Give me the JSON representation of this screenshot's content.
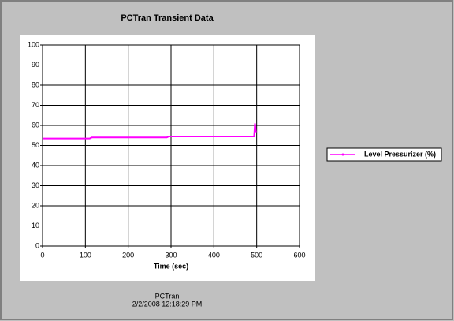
{
  "chart_data": {
    "type": "line",
    "title": "PCTran Transient Data",
    "x_label": "Time (sec)",
    "footer": [
      "PCTran",
      "2/2/2008 12:18:29 PM"
    ],
    "x": [
      0,
      110,
      115,
      290,
      295,
      494,
      496,
      498,
      500
    ],
    "series": [
      {
        "name": "Level Pressurizer (%)",
        "color": "#ff00ff",
        "values": [
          53.5,
          53.5,
          54,
          54,
          54.5,
          54.5,
          61,
          57,
          57
        ]
      }
    ],
    "xlim": [
      0,
      600
    ],
    "xticks": [
      0,
      100,
      200,
      300,
      400,
      500,
      600
    ],
    "ylim": [
      0,
      100
    ],
    "yticks": [
      0,
      10,
      20,
      30,
      40,
      50,
      60,
      70,
      80,
      90,
      100
    ],
    "grid": true,
    "legend": "right"
  }
}
